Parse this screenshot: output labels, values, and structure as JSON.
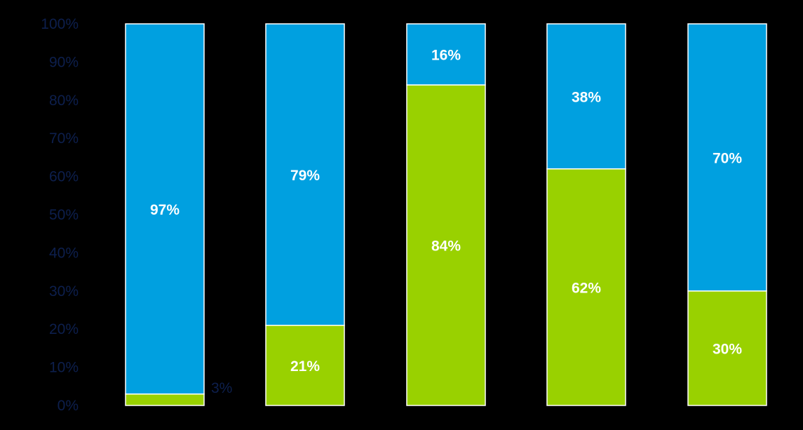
{
  "chart_data": {
    "type": "bar",
    "stacked": true,
    "categories": [
      "",
      "",
      "",
      "",
      ""
    ],
    "series": [
      {
        "color": "#99d100",
        "values": [
          3,
          21,
          84,
          62,
          30
        ]
      },
      {
        "color": "#00a0e0",
        "values": [
          97,
          79,
          16,
          38,
          70
        ]
      }
    ],
    "data_labels": [
      [
        "3%",
        "21%",
        "84%",
        "62%",
        "30%"
      ],
      [
        "97%",
        "79%",
        "16%",
        "38%",
        "70%"
      ]
    ],
    "y_ticks": [
      "0%",
      "10%",
      "20%",
      "30%",
      "40%",
      "50%",
      "60%",
      "70%",
      "80%",
      "90%",
      "100%"
    ],
    "ylim": [
      0,
      100
    ],
    "grid": false,
    "legend": "none",
    "colors": {
      "background": "#000000",
      "tick_text": "#0d1f4d",
      "bar_label": "#ffffff",
      "bar_outline": "#ffffff"
    }
  }
}
